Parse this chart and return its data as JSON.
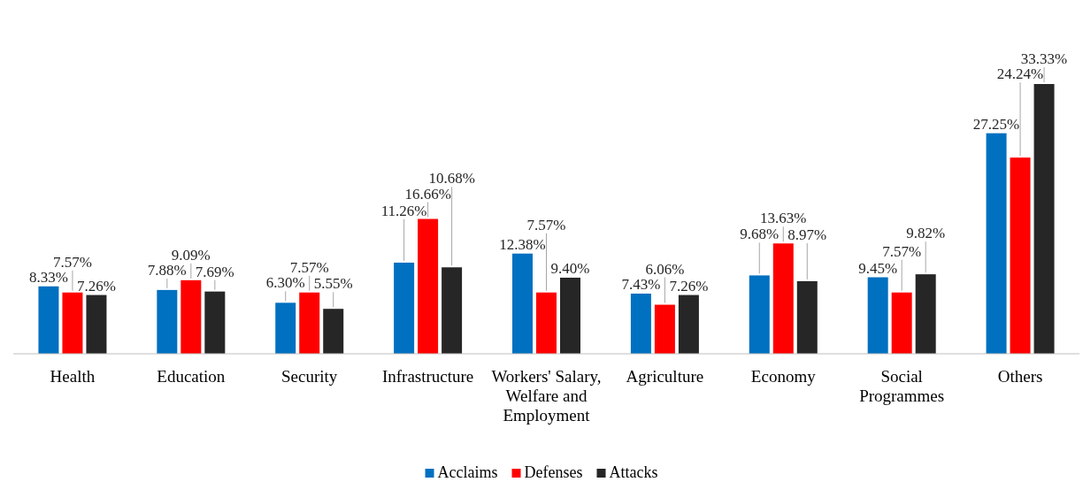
{
  "chart_data": {
    "type": "bar",
    "categories": [
      "Health",
      "Education",
      "Security",
      "Infrastructure",
      "Workers' Salary, Welfare and Employment",
      "Agriculture",
      "Economy",
      "Social Programmes",
      "Others"
    ],
    "series": [
      {
        "name": "Acclaims",
        "color": "#0070c0",
        "values": [
          8.33,
          7.88,
          6.3,
          11.26,
          12.38,
          7.43,
          9.68,
          9.45,
          27.25
        ],
        "value_labels": [
          "8.33%",
          "7.88%",
          "6.30%",
          "11.26%",
          "12.38%",
          "7.43%",
          "9.68%",
          "9.45%",
          "27.25%"
        ]
      },
      {
        "name": "Defenses",
        "color": "#ff0000",
        "values": [
          7.57,
          9.09,
          7.57,
          16.66,
          7.57,
          6.06,
          13.63,
          7.57,
          24.24
        ],
        "value_labels": [
          "7.57%",
          "9.09%",
          "7.57%",
          "16.66%",
          "7.57%",
          "6.06%",
          "13.63%",
          "7.57%",
          "24.24%"
        ]
      },
      {
        "name": "Attacks",
        "color": "#262626",
        "values": [
          7.26,
          7.69,
          5.55,
          10.68,
          9.4,
          7.26,
          8.97,
          9.82,
          33.33
        ],
        "value_labels": [
          "7.26%",
          "7.69%",
          "5.55%",
          "10.68%",
          "9.40%",
          "7.26%",
          "8.97%",
          "9.82%",
          "33.33%"
        ]
      }
    ],
    "legend": "bottom"
  }
}
